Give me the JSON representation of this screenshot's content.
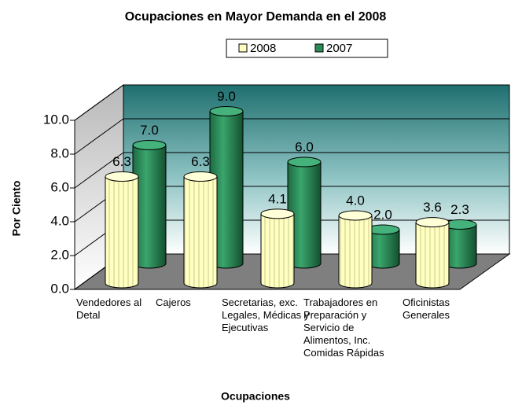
{
  "chart_data": {
    "type": "bar3d",
    "title": "Ocupaciones en Mayor Demanda en el 2008",
    "x_label": "Ocupaciones",
    "y_label": "Por Ciento",
    "categories": [
      "Vendedores al Detal",
      "Cajeros",
      "Secretarias, exc. Legales, Médicas y Ejecutivas",
      "Trabajadores en Preparación y Servicio de Alimentos, Inc. Comidas Rápidas",
      "Oficinistas Generales"
    ],
    "series": [
      {
        "name": "2008",
        "color": "#ffffc0",
        "values": [
          6.3,
          6.3,
          4.1,
          4.0,
          3.6
        ],
        "value_labels": [
          "6.3",
          "6.3",
          "4.1",
          "4.0",
          "3.6"
        ]
      },
      {
        "name": "2007",
        "color": "#2e8b57",
        "values": [
          7.0,
          9.0,
          6.0,
          2.0,
          2.3
        ],
        "value_labels": [
          "7.0",
          "9.0",
          "6.0",
          "2.0",
          "2.3"
        ]
      }
    ],
    "ylim": [
      0,
      10
    ],
    "yticks": [
      {
        "value": 0,
        "label": "0.0"
      },
      {
        "value": 2,
        "label": "2.0"
      },
      {
        "value": 4,
        "label": "4.0"
      },
      {
        "value": 6,
        "label": "6.0"
      },
      {
        "value": 8,
        "label": "8.0"
      },
      {
        "value": 10,
        "label": "10.0"
      }
    ],
    "grid": true,
    "legend": "top"
  }
}
